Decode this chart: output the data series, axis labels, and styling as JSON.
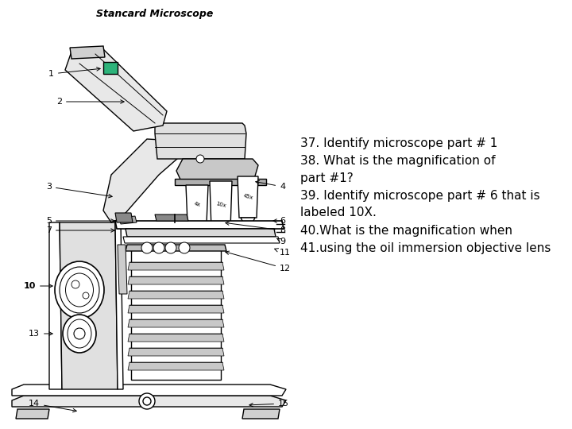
{
  "title": "Stancard Microscope",
  "bg_color": "#ffffff",
  "questions": [
    "37. Identify microscope part # 1",
    "38. What is the magnification of",
    "part #1?",
    "39. Identify microscope part # 6 that is",
    "labeled 10X.",
    "40.What is the magnification when",
    "41.using the oil immersion objective lens"
  ],
  "q_fontsize": 11,
  "green_square_color": "#2db37a",
  "label_fontsize": 8,
  "arrow_color": "#000000",
  "lw": 1.0
}
